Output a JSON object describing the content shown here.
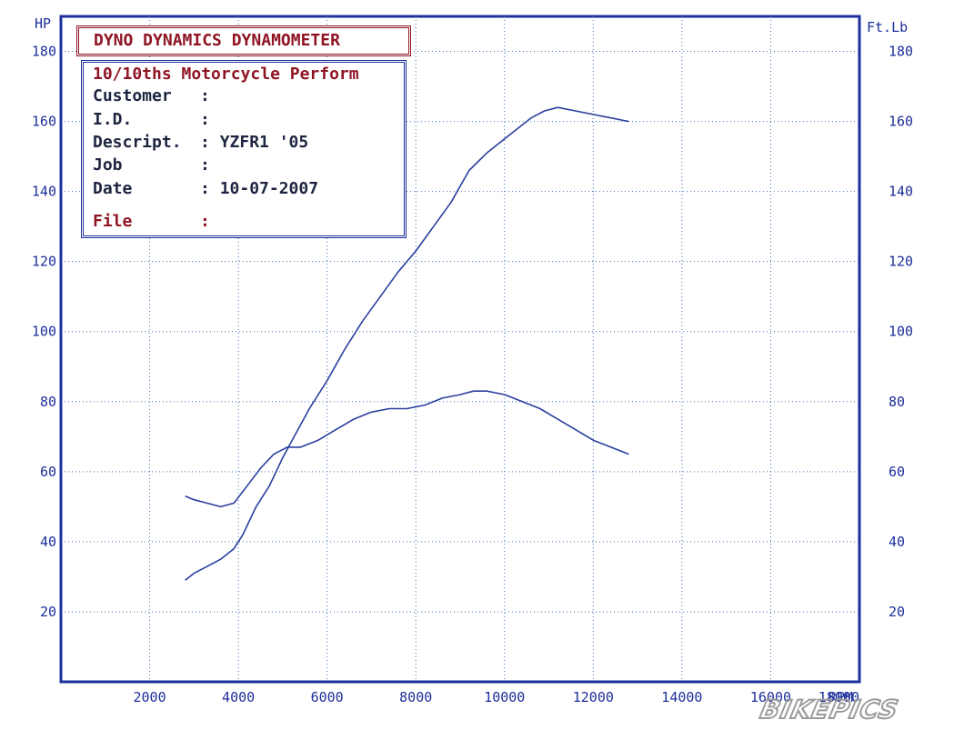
{
  "chart_data": {
    "type": "line",
    "title": "",
    "xlabel": "",
    "ylabel_left": "HP",
    "ylabel_right": "Ft.Lb",
    "x_unit_label": "RPM",
    "xlim": [
      0,
      18000
    ],
    "ylim_left": [
      0,
      190
    ],
    "ylim_right": [
      0,
      190
    ],
    "x_ticks": [
      2000,
      4000,
      6000,
      8000,
      10000,
      12000,
      14000,
      16000,
      18000
    ],
    "x_tick_labels": [
      "2000",
      "4000",
      "6000",
      "8000",
      "10000",
      "12000",
      "14000",
      "16000",
      "18000"
    ],
    "y_ticks": [
      20,
      40,
      60,
      80,
      100,
      120,
      140,
      160,
      180
    ],
    "y_tick_labels_left": [
      "20",
      "40",
      "60",
      "80",
      "100",
      "120",
      "140",
      "160",
      "180"
    ],
    "y_tick_labels_right": [
      "20",
      "40",
      "60",
      "80",
      "100",
      "120",
      "140",
      "160",
      "180"
    ],
    "grid": true,
    "series": [
      {
        "color": "#2a3f9e",
        "x": [
          2800,
          3000,
          3300,
          3600,
          3900,
          4100,
          4400,
          4700,
          5000,
          5300,
          5600,
          6000,
          6400,
          6800,
          7200,
          7600,
          8000,
          8400,
          8800,
          9200,
          9600,
          10000,
          10300,
          10600,
          10900,
          11200,
          11600,
          12000,
          12400,
          12800
        ],
        "y": [
          29,
          31,
          33,
          35,
          38,
          42,
          50,
          56,
          64,
          71,
          78,
          86,
          95,
          103,
          110,
          117,
          123,
          130,
          137,
          146,
          151,
          155,
          158,
          161,
          163,
          164,
          163,
          162,
          161,
          160
        ]
      },
      {
        "color": "#2a3f9e",
        "x": [
          2800,
          3000,
          3300,
          3600,
          3900,
          4200,
          4500,
          4800,
          5100,
          5400,
          5800,
          6200,
          6600,
          7000,
          7400,
          7800,
          8200,
          8600,
          9000,
          9300,
          9600,
          10000,
          10400,
          10800,
          11200,
          11600,
          12000,
          12400,
          12800
        ],
        "y": [
          53,
          52,
          51,
          50,
          51,
          56,
          61,
          65,
          67,
          67,
          69,
          72,
          75,
          77,
          78,
          78,
          79,
          81,
          82,
          83,
          83,
          82,
          80,
          78,
          75,
          72,
          69,
          67,
          65
        ]
      }
    ]
  },
  "info_box": {
    "title": "DYNO DYNAMICS DYNAMOMETER",
    "header": "10/10ths Motorcycle Perform",
    "rows": [
      {
        "label": "Customer",
        "sep": ":",
        "value": ""
      },
      {
        "label": "I.D.",
        "sep": ":",
        "value": ""
      },
      {
        "label": "Descript.",
        "sep": ":",
        "value": "YZFR1 '05"
      },
      {
        "label": "Job",
        "sep": ":",
        "value": ""
      },
      {
        "label": "Date",
        "sep": ":",
        "value": "10-07-2007"
      },
      {
        "label": "File",
        "sep": ":",
        "value": ""
      }
    ]
  },
  "watermark": {
    "text": "BIKEPICS"
  }
}
